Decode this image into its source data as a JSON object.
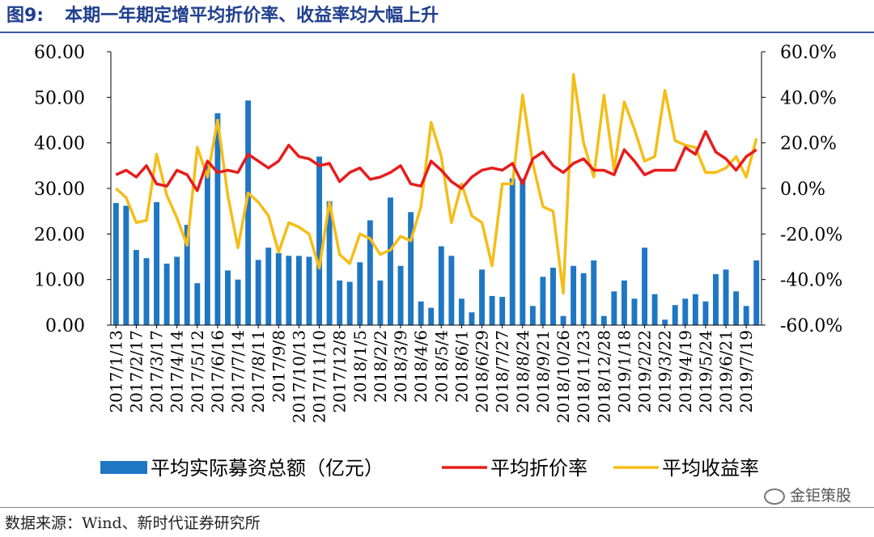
{
  "figure": {
    "number": "图9:",
    "title": "本期一年期定增平均折价率、收益率均大幅上升",
    "source": "数据来源：Wind、新时代证券研究所",
    "watermark": "金钜策股"
  },
  "colors": {
    "bar": "#1f77c4",
    "discount": "#e81c1c",
    "return": "#f5bd17",
    "title": "#1f3f8f"
  },
  "chart_data": {
    "type": "bar+line",
    "dual_axis": true,
    "y_left": {
      "min": 0,
      "max": 60,
      "step": 10,
      "tick_labels": [
        "0.00",
        "10.00",
        "20.00",
        "30.00",
        "40.00",
        "50.00",
        "60.00"
      ]
    },
    "y_right": {
      "min": -60,
      "max": 60,
      "step": 20,
      "tick_labels": [
        "-60.0%",
        "-40.0%",
        "-20.0%",
        "0.0%",
        "20.0%",
        "40.0%",
        "60.0%"
      ]
    },
    "x_tick_labels": [
      "2017/1/13",
      "2017/2/17",
      "2017/3/17",
      "2017/4/14",
      "2017/5/12",
      "2017/6/16",
      "2017/7/14",
      "2017/8/11",
      "2017/9/8",
      "2017/10/13",
      "2017/11/10",
      "2017/12/8",
      "2018/1/5",
      "2018/2/2",
      "2018/3/9",
      "2018/4/6",
      "2018/5/4",
      "2018/6/1",
      "2018/6/29",
      "2018/7/27",
      "2018/8/24",
      "2018/9/21",
      "2018/10/26",
      "2018/11/23",
      "2018/12/28",
      "2019/1/18",
      "2019/2/22",
      "2019/3/22",
      "2019/4/19",
      "2019/5/24",
      "2019/6/21",
      "2019/7/19"
    ],
    "series": [
      {
        "name": "平均实际募资总额（亿元）",
        "type": "bar",
        "axis": "left",
        "values": [
          26.8,
          26.2,
          16.5,
          14.7,
          27.0,
          13.5,
          15.0,
          22.0,
          9.2,
          35.0,
          46.5,
          12.0,
          10.0,
          49.3,
          14.3,
          17.0,
          15.8,
          15.2,
          15.2,
          15.0,
          37.0,
          27.2,
          9.8,
          9.5,
          13.8,
          23.0,
          9.8,
          28.0,
          13.0,
          24.8,
          5.2,
          3.8,
          17.3,
          15.2,
          5.8,
          2.8,
          12.2,
          6.4,
          6.2,
          32.2,
          32.2,
          4.2,
          10.6,
          12.6,
          2.0,
          13.0,
          11.4,
          14.2,
          2.0,
          7.4,
          9.8,
          5.8,
          17.0,
          6.8,
          1.2,
          4.4,
          5.8,
          6.8,
          5.2,
          11.2,
          12.2,
          7.4,
          4.2,
          14.2
        ]
      },
      {
        "name": "平均折价率",
        "type": "line",
        "axis": "right",
        "values": [
          6,
          8,
          5,
          10,
          2,
          1,
          8,
          6,
          -1,
          12,
          7,
          8,
          7,
          15,
          12,
          9,
          12,
          19,
          14,
          13,
          10,
          11,
          3,
          7,
          9,
          4,
          5,
          7,
          10,
          2,
          1,
          12,
          8,
          3,
          0,
          5,
          8,
          9,
          8,
          11,
          2,
          13,
          16,
          10,
          7,
          11,
          13,
          8,
          8,
          6,
          17,
          12,
          6,
          8,
          8,
          8,
          18,
          15,
          25,
          16,
          13,
          8,
          14,
          17
        ]
      },
      {
        "name": "平均收益率",
        "type": "line",
        "axis": "right",
        "values": [
          0,
          -4,
          -15,
          -14,
          15,
          -3,
          -13,
          -25,
          18,
          5,
          30,
          -3,
          -26,
          -2,
          -6,
          -12,
          -28,
          -15,
          -17,
          -20,
          -35,
          -6,
          -29,
          -33,
          -20,
          -22,
          -29,
          -27,
          -21,
          -23,
          -8,
          29,
          14,
          -15,
          2,
          -12,
          -15,
          -34,
          2,
          2,
          41,
          11,
          -8,
          -10,
          -46,
          50,
          20,
          5,
          41,
          8,
          38,
          26,
          12,
          14,
          43,
          21,
          19,
          18,
          7,
          7,
          9,
          14,
          5,
          22
        ]
      }
    ],
    "legend_position": "bottom",
    "grid": false
  }
}
